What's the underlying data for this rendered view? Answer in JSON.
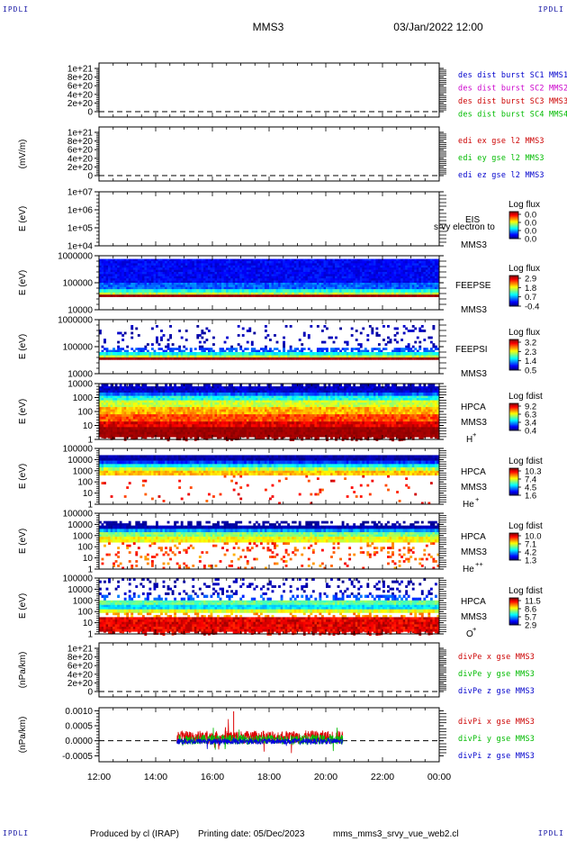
{
  "header": {
    "corner_label": "IPDLI",
    "spacecraft": "MMS3",
    "datetime": "03/Jan/2022 12:00"
  },
  "footer": {
    "producer": "Produced by cl (IRAP)",
    "printing_date": "Printing date: 05/Dec/2023",
    "script": "mms_mms3_srvy_vue_web2.cl"
  },
  "time_axis": {
    "ticks": [
      "12:00",
      "14:00",
      "16:00",
      "18:00",
      "20:00",
      "22:00",
      "00:00"
    ]
  },
  "chart_data": [
    {
      "id": "des-dist",
      "type": "line",
      "ylabel": "",
      "yticks": [
        "1e+21",
        "8e+20",
        "6e+20",
        "4e+20",
        "2e+20",
        "0"
      ],
      "zero_dashed": true,
      "legend": [
        {
          "text": "des dist burst SC1 MMS1",
          "color": "#0000cc"
        },
        {
          "text": "des dist burst SC2 MMS2",
          "color": "#cc00cc"
        },
        {
          "text": "des dist burst SC3 MMS3",
          "color": "#cc0000"
        },
        {
          "text": "des dist burst SC4 MMS4",
          "color": "#00bb00"
        }
      ]
    },
    {
      "id": "edi-e",
      "type": "line",
      "ylabel": "(mV/m)",
      "yticks": [
        "1e+21",
        "8e+20",
        "6e+20",
        "4e+20",
        "2e+20",
        "0"
      ],
      "zero_dashed": true,
      "legend": [
        {
          "text": "edi ex gse l2 MMS3",
          "color": "#cc0000"
        },
        {
          "text": "edi ey gse l2 MMS3",
          "color": "#00bb00"
        },
        {
          "text": "edi ez gse l2 MMS3",
          "color": "#0000cc"
        }
      ]
    },
    {
      "id": "eis",
      "type": "heatmap",
      "ylabel": "E (eV)",
      "yticks": [
        "1e+07",
        "1e+06",
        "1e+05",
        "1e+04"
      ],
      "labels": [
        "EIS",
        "srvy electron to",
        "MMS3"
      ],
      "colorbar": {
        "title": "Log flux",
        "ticks": [
          "0.0",
          "0.0",
          "0.0",
          "0.0"
        ]
      },
      "bands": []
    },
    {
      "id": "feeps-e",
      "type": "heatmap",
      "ylabel": "E (eV)",
      "yticks": [
        "1000000",
        "100000",
        "10000"
      ],
      "labels": [
        "FEEPSE",
        "MMS3"
      ],
      "colorbar": {
        "title": "Log flux",
        "ticks": [
          "2.9",
          "1.8",
          "0.7",
          "-0.4"
        ]
      },
      "bands": [
        {
          "from": 0.06,
          "to": 0.5,
          "level": 0.12,
          "noise": 0.05
        },
        {
          "from": 0.5,
          "to": 0.62,
          "level": 0.22,
          "noise": 0.06
        },
        {
          "from": 0.62,
          "to": 0.68,
          "level": 0.4,
          "noise": 0.06
        },
        {
          "from": 0.68,
          "to": 0.72,
          "level": 0.55,
          "noise": 0.06
        },
        {
          "from": 0.72,
          "to": 0.76,
          "level": 0.97,
          "noise": 0.02
        }
      ]
    },
    {
      "id": "feeps-i",
      "type": "heatmap",
      "ylabel": "E (eV)",
      "yticks": [
        "1000000",
        "100000",
        "10000"
      ],
      "labels": [
        "FEEPSI",
        "MMS3"
      ],
      "colorbar": {
        "title": "Log flux",
        "ticks": [
          "3.2",
          "2.3",
          "1.4",
          "0.5"
        ]
      },
      "bands": [
        {
          "from": 0.1,
          "to": 0.52,
          "level": 0.05,
          "noise": 0.03,
          "sparse": 0.12
        },
        {
          "from": 0.52,
          "to": 0.6,
          "level": 0.2,
          "noise": 0.05,
          "sparse": 0.6
        },
        {
          "from": 0.6,
          "to": 0.66,
          "level": 0.38,
          "noise": 0.06
        },
        {
          "from": 0.66,
          "to": 0.7,
          "level": 0.55,
          "noise": 0.06
        },
        {
          "from": 0.7,
          "to": 0.74,
          "level": 0.97,
          "noise": 0.02
        }
      ]
    },
    {
      "id": "hpca-h",
      "type": "heatmap",
      "ylabel": "E (eV)",
      "yticks": [
        "10000",
        "1000",
        "100",
        "10",
        "1"
      ],
      "labels": [
        "HPCA",
        "MMS3",
        "H+"
      ],
      "colorbar": {
        "title": "Log fdist",
        "ticks": [
          "9.2",
          "6.3",
          "3.4",
          "0.4"
        ]
      },
      "bands": [
        {
          "from": 0.0,
          "to": 0.05,
          "level": 0.05,
          "noise": 0.03,
          "sparse": 0.5
        },
        {
          "from": 0.05,
          "to": 0.16,
          "level": 0.07,
          "noise": 0.05
        },
        {
          "from": 0.16,
          "to": 0.22,
          "level": 0.22,
          "noise": 0.06
        },
        {
          "from": 0.22,
          "to": 0.3,
          "level": 0.4,
          "noise": 0.07
        },
        {
          "from": 0.3,
          "to": 0.42,
          "level": 0.58,
          "noise": 0.07
        },
        {
          "from": 0.42,
          "to": 0.55,
          "level": 0.7,
          "noise": 0.07
        },
        {
          "from": 0.55,
          "to": 0.68,
          "level": 0.8,
          "noise": 0.07
        },
        {
          "from": 0.68,
          "to": 0.78,
          "level": 0.9,
          "noise": 0.06
        },
        {
          "from": 0.78,
          "to": 1.0,
          "level": 0.97,
          "noise": 0.02,
          "spiky": 0.6
        }
      ]
    },
    {
      "id": "hpca-he",
      "type": "heatmap",
      "ylabel": "E (eV)",
      "yticks": [
        "100000",
        "10000",
        "1000",
        "100",
        "10",
        "1"
      ],
      "labels": [
        "HPCA",
        "MMS3",
        "He+"
      ],
      "colorbar": {
        "title": "Log fdist",
        "ticks": [
          "10.3",
          "7.4",
          "4.5",
          "1.6"
        ]
      },
      "bands": [
        {
          "from": 0.12,
          "to": 0.22,
          "level": 0.04,
          "noise": 0.03
        },
        {
          "from": 0.22,
          "to": 0.28,
          "level": 0.18,
          "noise": 0.05
        },
        {
          "from": 0.28,
          "to": 0.34,
          "level": 0.38,
          "noise": 0.06
        },
        {
          "from": 0.34,
          "to": 0.4,
          "level": 0.55,
          "noise": 0.07
        },
        {
          "from": 0.4,
          "to": 0.48,
          "level": 0.68,
          "noise": 0.07
        },
        {
          "from": 0.48,
          "to": 1.0,
          "level": 0.85,
          "noise": 0.08,
          "sparse": 0.03
        }
      ]
    },
    {
      "id": "hpca-hepp",
      "type": "heatmap",
      "ylabel": "E (eV)",
      "yticks": [
        "100000",
        "10000",
        "1000",
        "100",
        "10",
        "1"
      ],
      "labels": [
        "HPCA",
        "MMS3",
        "He++"
      ],
      "colorbar": {
        "title": "Log fdist",
        "ticks": [
          "10.0",
          "7.1",
          "4.2",
          "1.3"
        ]
      },
      "bands": [
        {
          "from": 0.14,
          "to": 0.22,
          "level": 0.03,
          "noise": 0.02,
          "sparse": 0.45
        },
        {
          "from": 0.22,
          "to": 0.28,
          "level": 0.05,
          "noise": 0.03
        },
        {
          "from": 0.28,
          "to": 0.34,
          "level": 0.28,
          "noise": 0.06
        },
        {
          "from": 0.34,
          "to": 0.42,
          "level": 0.5,
          "noise": 0.07
        },
        {
          "from": 0.42,
          "to": 0.52,
          "level": 0.62,
          "noise": 0.06
        },
        {
          "from": 0.52,
          "to": 1.0,
          "level": 0.8,
          "noise": 0.1,
          "sparse": 0.14
        }
      ]
    },
    {
      "id": "hpca-o",
      "type": "heatmap",
      "ylabel": "E (eV)",
      "yticks": [
        "100000",
        "10000",
        "1000",
        "100",
        "10",
        "1"
      ],
      "labels": [
        "HPCA",
        "MMS3",
        "O+"
      ],
      "colorbar": {
        "title": "Log fdist",
        "ticks": [
          "11.5",
          "8.6",
          "5.7",
          "2.9"
        ]
      },
      "bands": [
        {
          "from": 0.0,
          "to": 0.3,
          "level": 0.05,
          "noise": 0.03,
          "sparse": 0.15
        },
        {
          "from": 0.3,
          "to": 0.4,
          "level": 0.2,
          "noise": 0.05,
          "sparse": 0.35
        },
        {
          "from": 0.4,
          "to": 0.48,
          "level": 0.48,
          "noise": 0.06
        },
        {
          "from": 0.48,
          "to": 0.56,
          "level": 0.35,
          "noise": 0.06
        },
        {
          "from": 0.56,
          "to": 0.62,
          "level": 0.6,
          "noise": 0.07
        },
        {
          "from": 0.62,
          "to": 0.7,
          "level": 0.72,
          "noise": 0.07,
          "sparse": 0.35
        },
        {
          "from": 0.7,
          "to": 1.0,
          "level": 0.9,
          "noise": 0.07,
          "spiky": 0.6
        }
      ]
    },
    {
      "id": "divpe",
      "type": "line",
      "ylabel": "(nPa/km)",
      "yticks": [
        "1e+21",
        "8e+20",
        "6e+20",
        "4e+20",
        "2e+20",
        "0"
      ],
      "zero_dashed": true,
      "legend": [
        {
          "text": "divPe x gse MMS3",
          "color": "#cc0000"
        },
        {
          "text": "divPe y gse MMS3",
          "color": "#00bb00"
        },
        {
          "text": "divPe z gse MMS3",
          "color": "#0000cc"
        }
      ]
    },
    {
      "id": "divpi",
      "type": "line",
      "ylabel": "(nPa/km)",
      "yticks": [
        "0.0010",
        "0.0005",
        "0.0000",
        "-0.0005"
      ],
      "ylim": [
        -0.0007,
        0.0011
      ],
      "zero_dashed": true,
      "x_range": [
        14.75,
        20.6
      ],
      "series": [
        {
          "name": "divPi x gse MMS3",
          "color": "#dd0000",
          "offset": 0.00012,
          "amp": 0.00022
        },
        {
          "name": "divPi y gse MMS3",
          "color": "#00bb00",
          "offset": 4e-05,
          "amp": 0.00016
        },
        {
          "name": "divPi z gse MMS3",
          "color": "#0000dd",
          "offset": -2e-05,
          "amp": 0.0001
        }
      ],
      "legend": [
        {
          "text": "divPi x gse MMS3",
          "color": "#cc0000"
        },
        {
          "text": "divPi y gse MMS3",
          "color": "#00bb00"
        },
        {
          "text": "divPi z gse MMS3",
          "color": "#0000cc"
        }
      ]
    }
  ]
}
